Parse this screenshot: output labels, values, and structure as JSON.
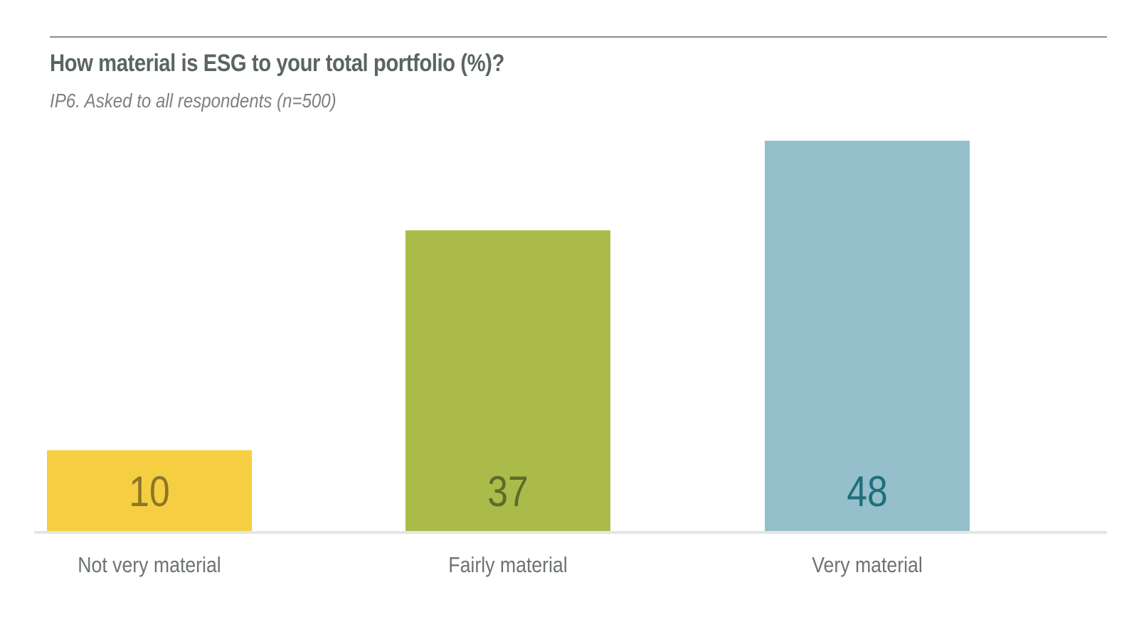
{
  "chart_data": {
    "type": "bar",
    "title": "How material is ESG to your total portfolio (%)?",
    "subtitle": "IP6. Asked to all respondents (n=500)",
    "categories": [
      "Not very material",
      "Fairly material",
      "Very material"
    ],
    "values": [
      10,
      37,
      48
    ],
    "ylim": [
      0,
      48
    ],
    "grid": false,
    "data_labels": true,
    "colors": {
      "bars": [
        "#f5ce42",
        "#abbb4a",
        "#94bfcb"
      ],
      "labels": [
        "#8c7527",
        "#5e6b2a",
        "#1f6e7d"
      ]
    }
  },
  "colors": {
    "title": "#5b6560",
    "subtitle": "#7b817e",
    "top_rule": "#8a8f8c",
    "baseline": "#e4e6e5",
    "category_text": "#6d7370"
  }
}
